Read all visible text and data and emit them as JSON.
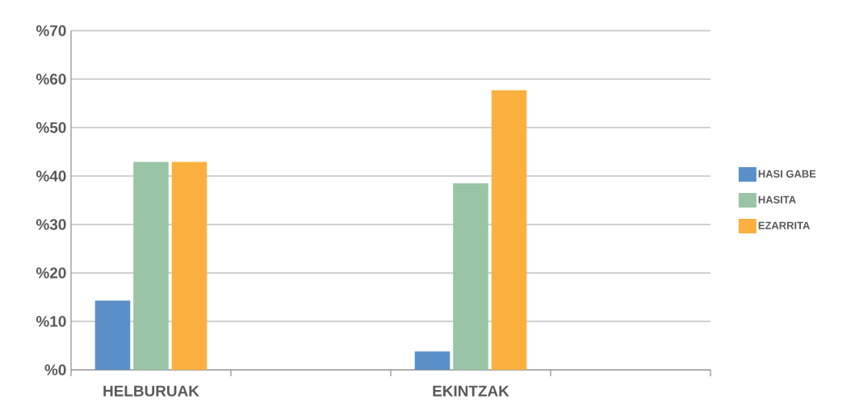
{
  "chart_data": {
    "type": "bar",
    "categories": [
      "HELBURUAK",
      null,
      "EKINTZAK",
      null
    ],
    "series": [
      {
        "name": "HASI GABE",
        "color": "#5b8fc7",
        "values": [
          14.3,
          null,
          3.8,
          null
        ]
      },
      {
        "name": "HASITA",
        "color": "#9ac4a6",
        "values": [
          42.9,
          null,
          38.5,
          null
        ]
      },
      {
        "name": "EZARRITA",
        "color": "#fbb040",
        "values": [
          42.9,
          null,
          57.7,
          null
        ]
      }
    ],
    "ylim": [
      0,
      70
    ],
    "yticks": [
      {
        "value": 0,
        "label": "%0"
      },
      {
        "value": 10,
        "label": "%10"
      },
      {
        "value": 20,
        "label": "%20"
      },
      {
        "value": 30,
        "label": "%30"
      },
      {
        "value": 40,
        "label": "%40"
      },
      {
        "value": 50,
        "label": "%50"
      },
      {
        "value": 60,
        "label": "%60"
      },
      {
        "value": 70,
        "label": "%70"
      }
    ],
    "grid": "y",
    "legend": "right"
  }
}
